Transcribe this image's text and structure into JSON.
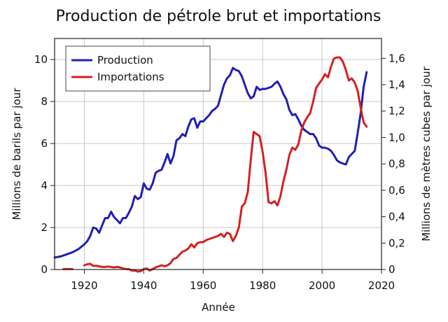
{
  "chart_data": {
    "type": "line",
    "title": "Production de pétrole brut et importations",
    "xlabel": "Année",
    "ylabel": "Millions de barils par jour",
    "y2label": "Millions de mètres cubes par jour",
    "xlim": [
      1910,
      2020
    ],
    "ylim": [
      0,
      11
    ],
    "y2lim": [
      0,
      1.75
    ],
    "xticks": [
      1920,
      1940,
      1960,
      1980,
      2000,
      2020
    ],
    "yticks": [
      0,
      2,
      4,
      6,
      8,
      10
    ],
    "y2ticks": [
      "0",
      "0,2",
      "0,4",
      "0,6",
      "0,8",
      "1,0",
      "1,2",
      "1,4",
      "1,6"
    ],
    "y2tick_values": [
      0,
      0.2,
      0.4,
      0.6,
      0.8,
      1.0,
      1.2,
      1.4,
      1.6
    ],
    "grid": true,
    "legend_position": "top-left",
    "series": [
      {
        "name": "Production",
        "color": "#1f1fb4",
        "points": [
          [
            1910,
            0.57
          ],
          [
            1912,
            0.62
          ],
          [
            1914,
            0.72
          ],
          [
            1916,
            0.82
          ],
          [
            1918,
            0.97
          ],
          [
            1920,
            1.2
          ],
          [
            1921,
            1.35
          ],
          [
            1922,
            1.6
          ],
          [
            1923,
            2.0
          ],
          [
            1924,
            1.95
          ],
          [
            1925,
            1.75
          ],
          [
            1926,
            2.1
          ],
          [
            1927,
            2.45
          ],
          [
            1928,
            2.45
          ],
          [
            1929,
            2.75
          ],
          [
            1930,
            2.5
          ],
          [
            1931,
            2.35
          ],
          [
            1932,
            2.2
          ],
          [
            1933,
            2.45
          ],
          [
            1934,
            2.45
          ],
          [
            1935,
            2.7
          ],
          [
            1936,
            3.0
          ],
          [
            1937,
            3.5
          ],
          [
            1938,
            3.35
          ],
          [
            1939,
            3.45
          ],
          [
            1940,
            4.1
          ],
          [
            1941,
            3.85
          ],
          [
            1942,
            3.8
          ],
          [
            1943,
            4.1
          ],
          [
            1944,
            4.6
          ],
          [
            1945,
            4.7
          ],
          [
            1946,
            4.75
          ],
          [
            1947,
            5.1
          ],
          [
            1948,
            5.5
          ],
          [
            1949,
            5.05
          ],
          [
            1950,
            5.4
          ],
          [
            1951,
            6.15
          ],
          [
            1952,
            6.25
          ],
          [
            1953,
            6.45
          ],
          [
            1954,
            6.35
          ],
          [
            1955,
            6.8
          ],
          [
            1956,
            7.15
          ],
          [
            1957,
            7.2
          ],
          [
            1958,
            6.75
          ],
          [
            1959,
            7.05
          ],
          [
            1960,
            7.05
          ],
          [
            1961,
            7.2
          ],
          [
            1962,
            7.35
          ],
          [
            1963,
            7.55
          ],
          [
            1964,
            7.65
          ],
          [
            1965,
            7.8
          ],
          [
            1966,
            8.3
          ],
          [
            1967,
            8.8
          ],
          [
            1968,
            9.1
          ],
          [
            1969,
            9.25
          ],
          [
            1970,
            9.6
          ],
          [
            1971,
            9.5
          ],
          [
            1972,
            9.45
          ],
          [
            1973,
            9.2
          ],
          [
            1974,
            8.8
          ],
          [
            1975,
            8.4
          ],
          [
            1976,
            8.15
          ],
          [
            1977,
            8.25
          ],
          [
            1978,
            8.7
          ],
          [
            1979,
            8.55
          ],
          [
            1980,
            8.6
          ],
          [
            1981,
            8.6
          ],
          [
            1982,
            8.65
          ],
          [
            1983,
            8.7
          ],
          [
            1984,
            8.85
          ],
          [
            1985,
            8.95
          ],
          [
            1986,
            8.7
          ],
          [
            1987,
            8.35
          ],
          [
            1988,
            8.1
          ],
          [
            1989,
            7.6
          ],
          [
            1990,
            7.35
          ],
          [
            1991,
            7.4
          ],
          [
            1992,
            7.15
          ],
          [
            1993,
            6.85
          ],
          [
            1994,
            6.65
          ],
          [
            1995,
            6.55
          ],
          [
            1996,
            6.45
          ],
          [
            1997,
            6.45
          ],
          [
            1998,
            6.25
          ],
          [
            1999,
            5.9
          ],
          [
            2000,
            5.8
          ],
          [
            2001,
            5.8
          ],
          [
            2002,
            5.75
          ],
          [
            2003,
            5.65
          ],
          [
            2004,
            5.45
          ],
          [
            2005,
            5.2
          ],
          [
            2006,
            5.1
          ],
          [
            2007,
            5.05
          ],
          [
            2008,
            5.0
          ],
          [
            2009,
            5.35
          ],
          [
            2010,
            5.5
          ],
          [
            2011,
            5.65
          ],
          [
            2012,
            6.5
          ],
          [
            2013,
            7.45
          ],
          [
            2014,
            8.7
          ],
          [
            2015,
            9.4
          ]
        ]
      },
      {
        "name": "Importations",
        "color": "#d42020",
        "points": [
          [
            1920,
            0.2
          ],
          [
            1921,
            0.25
          ],
          [
            1922,
            0.27
          ],
          [
            1923,
            0.17
          ],
          [
            1924,
            0.18
          ],
          [
            1925,
            0.15
          ],
          [
            1926,
            0.12
          ],
          [
            1927,
            0.12
          ],
          [
            1928,
            0.14
          ],
          [
            1929,
            0.12
          ],
          [
            1930,
            0.1
          ],
          [
            1931,
            0.12
          ],
          [
            1932,
            0.1
          ],
          [
            1933,
            0.05
          ],
          [
            1934,
            0.02
          ],
          [
            1935,
            0.02
          ],
          [
            1936,
            -0.05
          ],
          [
            1937,
            -0.05
          ],
          [
            1938,
            -0.1
          ],
          [
            1939,
            -0.08
          ],
          [
            1940,
            0.02
          ],
          [
            1941,
            0.05
          ],
          [
            1942,
            -0.05
          ],
          [
            1943,
            0.02
          ],
          [
            1944,
            0.1
          ],
          [
            1945,
            0.15
          ],
          [
            1946,
            0.2
          ],
          [
            1947,
            0.15
          ],
          [
            1948,
            0.2
          ],
          [
            1949,
            0.3
          ],
          [
            1950,
            0.5
          ],
          [
            1951,
            0.55
          ],
          [
            1952,
            0.7
          ],
          [
            1953,
            0.85
          ],
          [
            1954,
            0.9
          ],
          [
            1955,
            1.0
          ],
          [
            1956,
            1.2
          ],
          [
            1957,
            1.05
          ],
          [
            1958,
            1.25
          ],
          [
            1959,
            1.3
          ],
          [
            1960,
            1.3
          ],
          [
            1961,
            1.4
          ],
          [
            1962,
            1.45
          ],
          [
            1963,
            1.5
          ],
          [
            1964,
            1.55
          ],
          [
            1965,
            1.6
          ],
          [
            1966,
            1.7
          ],
          [
            1967,
            1.55
          ],
          [
            1968,
            1.75
          ],
          [
            1969,
            1.7
          ],
          [
            1970,
            1.35
          ],
          [
            1971,
            1.6
          ],
          [
            1972,
            2.0
          ],
          [
            1973,
            3.0
          ],
          [
            1974,
            3.15
          ],
          [
            1975,
            3.7
          ],
          [
            1976,
            5.2
          ],
          [
            1977,
            6.55
          ],
          [
            1978,
            6.45
          ],
          [
            1979,
            6.35
          ],
          [
            1980,
            5.6
          ],
          [
            1981,
            4.6
          ],
          [
            1982,
            3.2
          ],
          [
            1983,
            3.15
          ],
          [
            1984,
            3.25
          ],
          [
            1985,
            3.05
          ],
          [
            1986,
            3.5
          ],
          [
            1987,
            4.2
          ],
          [
            1988,
            4.75
          ],
          [
            1989,
            5.45
          ],
          [
            1990,
            5.8
          ],
          [
            1991,
            5.7
          ],
          [
            1992,
            5.95
          ],
          [
            1993,
            6.6
          ],
          [
            1994,
            7.0
          ],
          [
            1995,
            7.25
          ],
          [
            1996,
            7.45
          ],
          [
            1997,
            8.0
          ],
          [
            1998,
            8.65
          ],
          [
            1999,
            8.85
          ],
          [
            2000,
            9.05
          ],
          [
            2001,
            9.3
          ],
          [
            2002,
            9.15
          ],
          [
            2003,
            9.65
          ],
          [
            2004,
            10.05
          ],
          [
            2005,
            10.1
          ],
          [
            2006,
            10.1
          ],
          [
            2007,
            9.9
          ],
          [
            2008,
            9.5
          ],
          [
            2009,
            9.0
          ],
          [
            2010,
            9.1
          ],
          [
            2011,
            8.9
          ],
          [
            2012,
            8.5
          ],
          [
            2013,
            7.7
          ],
          [
            2014,
            7.0
          ],
          [
            2015,
            6.8
          ]
        ]
      },
      {
        "name": "Importations",
        "color": "#d42020",
        "points": [
          [
            1913,
            0.02
          ],
          [
            1916,
            0.02
          ]
        ]
      }
    ]
  }
}
